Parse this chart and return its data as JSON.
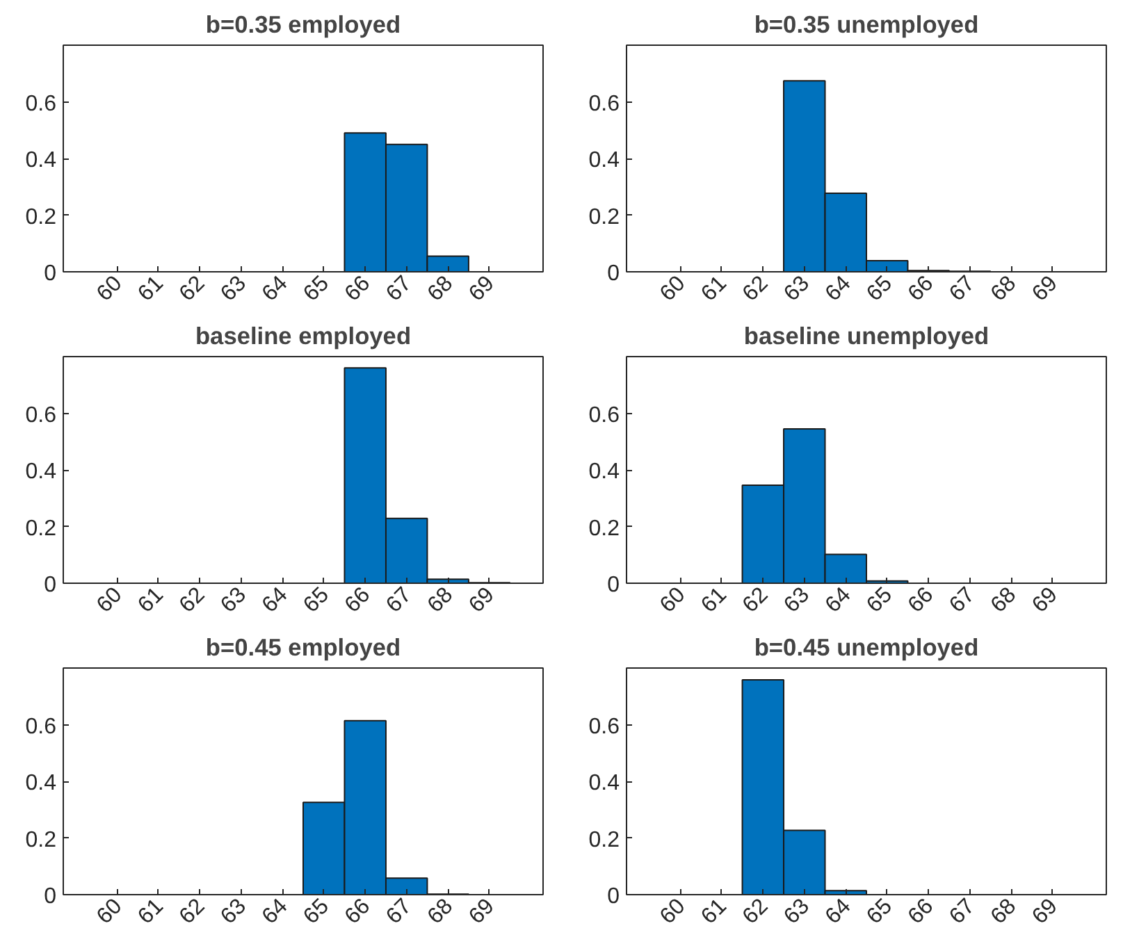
{
  "chart_data": [
    {
      "type": "histogram",
      "title": "b=0.35 employed",
      "bins": [
        59.5,
        60.5,
        61.5,
        62.5,
        63.5,
        64.5,
        65.5,
        66.5,
        67.5,
        68.5,
        69.5
      ],
      "values": [
        0,
        0,
        0,
        0,
        0,
        0,
        0.49,
        0.45,
        0.055,
        0
      ],
      "color": "#0072bd",
      "xlim": [
        58.7,
        70.3
      ],
      "xticks": [
        60,
        61,
        62,
        63,
        64,
        65,
        66,
        67,
        68,
        69
      ],
      "ylim": [
        0,
        0.8
      ],
      "yticks": [
        0,
        0.2,
        0.4,
        0.6
      ]
    },
    {
      "type": "histogram",
      "title": "b=0.35 unemployed",
      "bins": [
        59.5,
        60.5,
        61.5,
        62.5,
        63.5,
        64.5,
        65.5,
        66.5,
        67.5,
        68.5,
        69.5
      ],
      "values": [
        0,
        0,
        0,
        0.674,
        0.277,
        0.039,
        0.004,
        0.002,
        0,
        0
      ],
      "color": "#0072bd",
      "xlim": [
        58.7,
        70.3
      ],
      "xticks": [
        60,
        61,
        62,
        63,
        64,
        65,
        66,
        67,
        68,
        69
      ],
      "ylim": [
        0,
        0.8
      ],
      "yticks": [
        0,
        0.2,
        0.4,
        0.6
      ]
    },
    {
      "type": "histogram",
      "title": "baseline employed",
      "bins": [
        59.5,
        60.5,
        61.5,
        62.5,
        63.5,
        64.5,
        65.5,
        66.5,
        67.5,
        68.5,
        69.5
      ],
      "values": [
        0,
        0,
        0,
        0,
        0,
        0,
        0.76,
        0.229,
        0.014,
        0.002
      ],
      "color": "#0072bd",
      "xlim": [
        58.7,
        70.3
      ],
      "xticks": [
        60,
        61,
        62,
        63,
        64,
        65,
        66,
        67,
        68,
        69
      ],
      "ylim": [
        0,
        0.8
      ],
      "yticks": [
        0,
        0.2,
        0.4,
        0.6
      ]
    },
    {
      "type": "histogram",
      "title": "baseline unemployed",
      "bins": [
        59.5,
        60.5,
        61.5,
        62.5,
        63.5,
        64.5,
        65.5,
        66.5,
        67.5,
        68.5,
        69.5
      ],
      "values": [
        0,
        0,
        0.346,
        0.545,
        0.102,
        0.008,
        0,
        0,
        0,
        0
      ],
      "color": "#0072bd",
      "xlim": [
        58.7,
        70.3
      ],
      "xticks": [
        60,
        61,
        62,
        63,
        64,
        65,
        66,
        67,
        68,
        69
      ],
      "ylim": [
        0,
        0.8
      ],
      "yticks": [
        0,
        0.2,
        0.4,
        0.6
      ]
    },
    {
      "type": "histogram",
      "title": "b=0.45 employed",
      "bins": [
        59.5,
        60.5,
        61.5,
        62.5,
        63.5,
        64.5,
        65.5,
        66.5,
        67.5,
        68.5,
        69.5
      ],
      "values": [
        0,
        0,
        0,
        0,
        0,
        0.326,
        0.614,
        0.058,
        0.002,
        0
      ],
      "color": "#0072bd",
      "xlim": [
        58.7,
        70.3
      ],
      "xticks": [
        60,
        61,
        62,
        63,
        64,
        65,
        66,
        67,
        68,
        69
      ],
      "ylim": [
        0,
        0.8
      ],
      "yticks": [
        0,
        0.2,
        0.4,
        0.6
      ]
    },
    {
      "type": "histogram",
      "title": "b=0.45 unemployed",
      "bins": [
        59.5,
        60.5,
        61.5,
        62.5,
        63.5,
        64.5,
        65.5,
        66.5,
        67.5,
        68.5,
        69.5
      ],
      "values": [
        0,
        0,
        0.758,
        0.227,
        0.014,
        0,
        0,
        0,
        0,
        0
      ],
      "color": "#0072bd",
      "xlim": [
        58.7,
        70.3
      ],
      "xticks": [
        60,
        61,
        62,
        63,
        64,
        65,
        66,
        67,
        68,
        69
      ],
      "ylim": [
        0,
        0.8
      ],
      "yticks": [
        0,
        0.2,
        0.4,
        0.6
      ]
    }
  ]
}
